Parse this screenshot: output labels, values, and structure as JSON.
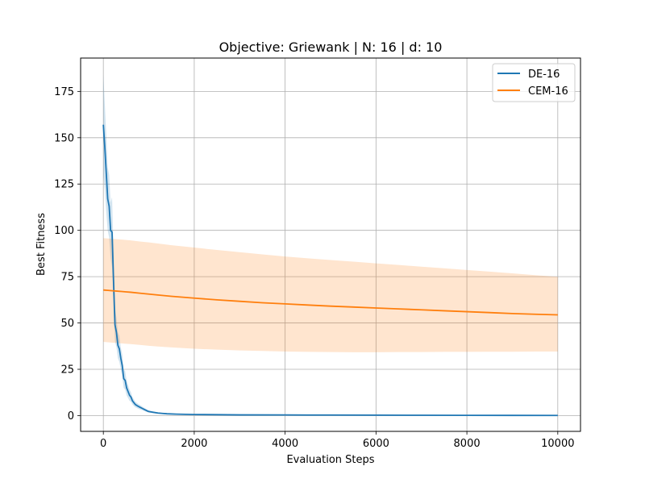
{
  "chart_data": {
    "type": "line",
    "title": "Objective: Griewank | N: 16 | d: 10",
    "xlabel": "Evaluation Steps",
    "ylabel": "Best Fitness",
    "xlim": [
      -500,
      10500
    ],
    "ylim": [
      -8.5,
      193
    ],
    "xticks": [
      0,
      2000,
      4000,
      6000,
      8000,
      10000
    ],
    "xtick_labels": [
      "0",
      "2000",
      "4000",
      "6000",
      "8000",
      "10000"
    ],
    "yticks": [
      0,
      25,
      50,
      75,
      100,
      125,
      150,
      175
    ],
    "ytick_labels": [
      "0",
      "25",
      "50",
      "75",
      "100",
      "125",
      "150",
      "175"
    ],
    "grid": true,
    "legend_position": "top-right",
    "series": [
      {
        "name": "DE-16",
        "color": "#1f77b4",
        "x": [
          0,
          32,
          64,
          96,
          128,
          160,
          192,
          224,
          256,
          288,
          320,
          352,
          384,
          416,
          448,
          480,
          512,
          544,
          576,
          608,
          640,
          672,
          704,
          736,
          768,
          800,
          832,
          864,
          896,
          928,
          960,
          1000,
          1100,
          1200,
          1300,
          1400,
          1600,
          1800,
          2000,
          2500,
          3000,
          4000,
          5000,
          6000,
          7000,
          8000,
          9000,
          10000
        ],
        "y": [
          157,
          145,
          131,
          117,
          113,
          100,
          99,
          73,
          49,
          45,
          38,
          36,
          31,
          27,
          20,
          19,
          15,
          13,
          11,
          10,
          8,
          7,
          6,
          5.5,
          5,
          4.6,
          4.2,
          3.8,
          3.4,
          3.0,
          2.6,
          2.2,
          1.8,
          1.4,
          1.2,
          1.0,
          0.8,
          0.7,
          0.6,
          0.5,
          0.4,
          0.35,
          0.3,
          0.25,
          0.2,
          0.15,
          0.12,
          0.1
        ],
        "lower": [
          130,
          122,
          110,
          100,
          96,
          85,
          80,
          58,
          40,
          37,
          31,
          29,
          25,
          21,
          15,
          14,
          11,
          9.5,
          8,
          7.5,
          6,
          5.2,
          4.5,
          4.1,
          3.7,
          3.4,
          3.1,
          2.8,
          2.5,
          2.2,
          1.9,
          1.6,
          1.3,
          1.0,
          0.9,
          0.7,
          0.55,
          0.5,
          0.45,
          0.35,
          0.3,
          0.25,
          0.2,
          0.18,
          0.15,
          0.1,
          0.08,
          0.06
        ],
        "upper": [
          184,
          168,
          152,
          134,
          130,
          115,
          118,
          88,
          58,
          53,
          45,
          43,
          37,
          33,
          25,
          24,
          19,
          16.5,
          14,
          12.5,
          10,
          8.8,
          7.5,
          6.9,
          6.3,
          5.8,
          5.3,
          4.8,
          4.3,
          3.8,
          3.3,
          2.8,
          2.3,
          1.8,
          1.5,
          1.3,
          1.05,
          0.9,
          0.75,
          0.65,
          0.5,
          0.45,
          0.4,
          0.32,
          0.25,
          0.2,
          0.16,
          0.14
        ]
      },
      {
        "name": "CEM-16",
        "color": "#ff7f0e",
        "x": [
          0,
          100,
          200,
          300,
          400,
          500,
          600,
          800,
          1000,
          1200,
          1500,
          2000,
          2500,
          3000,
          3500,
          4000,
          4500,
          5000,
          5500,
          6000,
          6500,
          7000,
          7500,
          8000,
          8500,
          9000,
          9500,
          10000
        ],
        "y": [
          67.8,
          67.6,
          67.4,
          67.2,
          67.0,
          66.8,
          66.6,
          66.1,
          65.6,
          65.1,
          64.4,
          63.4,
          62.5,
          61.7,
          60.9,
          60.3,
          59.7,
          59.1,
          58.6,
          58.1,
          57.6,
          57.1,
          56.6,
          56.1,
          55.6,
          55.1,
          54.7,
          54.4
        ],
        "lower": [
          39.8,
          39.6,
          39.4,
          39.2,
          39.0,
          38.8,
          38.6,
          38.2,
          37.7,
          37.3,
          36.8,
          36.1,
          35.6,
          35.2,
          34.9,
          34.6,
          34.4,
          34.3,
          34.2,
          34.2,
          34.3,
          34.3,
          34.4,
          34.4,
          34.5,
          34.5,
          34.6,
          34.6
        ],
        "upper": [
          95.8,
          95.6,
          95.4,
          95.2,
          95.0,
          94.8,
          94.6,
          94.0,
          93.5,
          92.9,
          92.0,
          90.7,
          89.4,
          88.2,
          87.0,
          85.9,
          84.9,
          84.0,
          83.1,
          82.2,
          81.3,
          80.4,
          79.5,
          78.6,
          77.7,
          76.8,
          75.8,
          74.9
        ]
      }
    ]
  }
}
